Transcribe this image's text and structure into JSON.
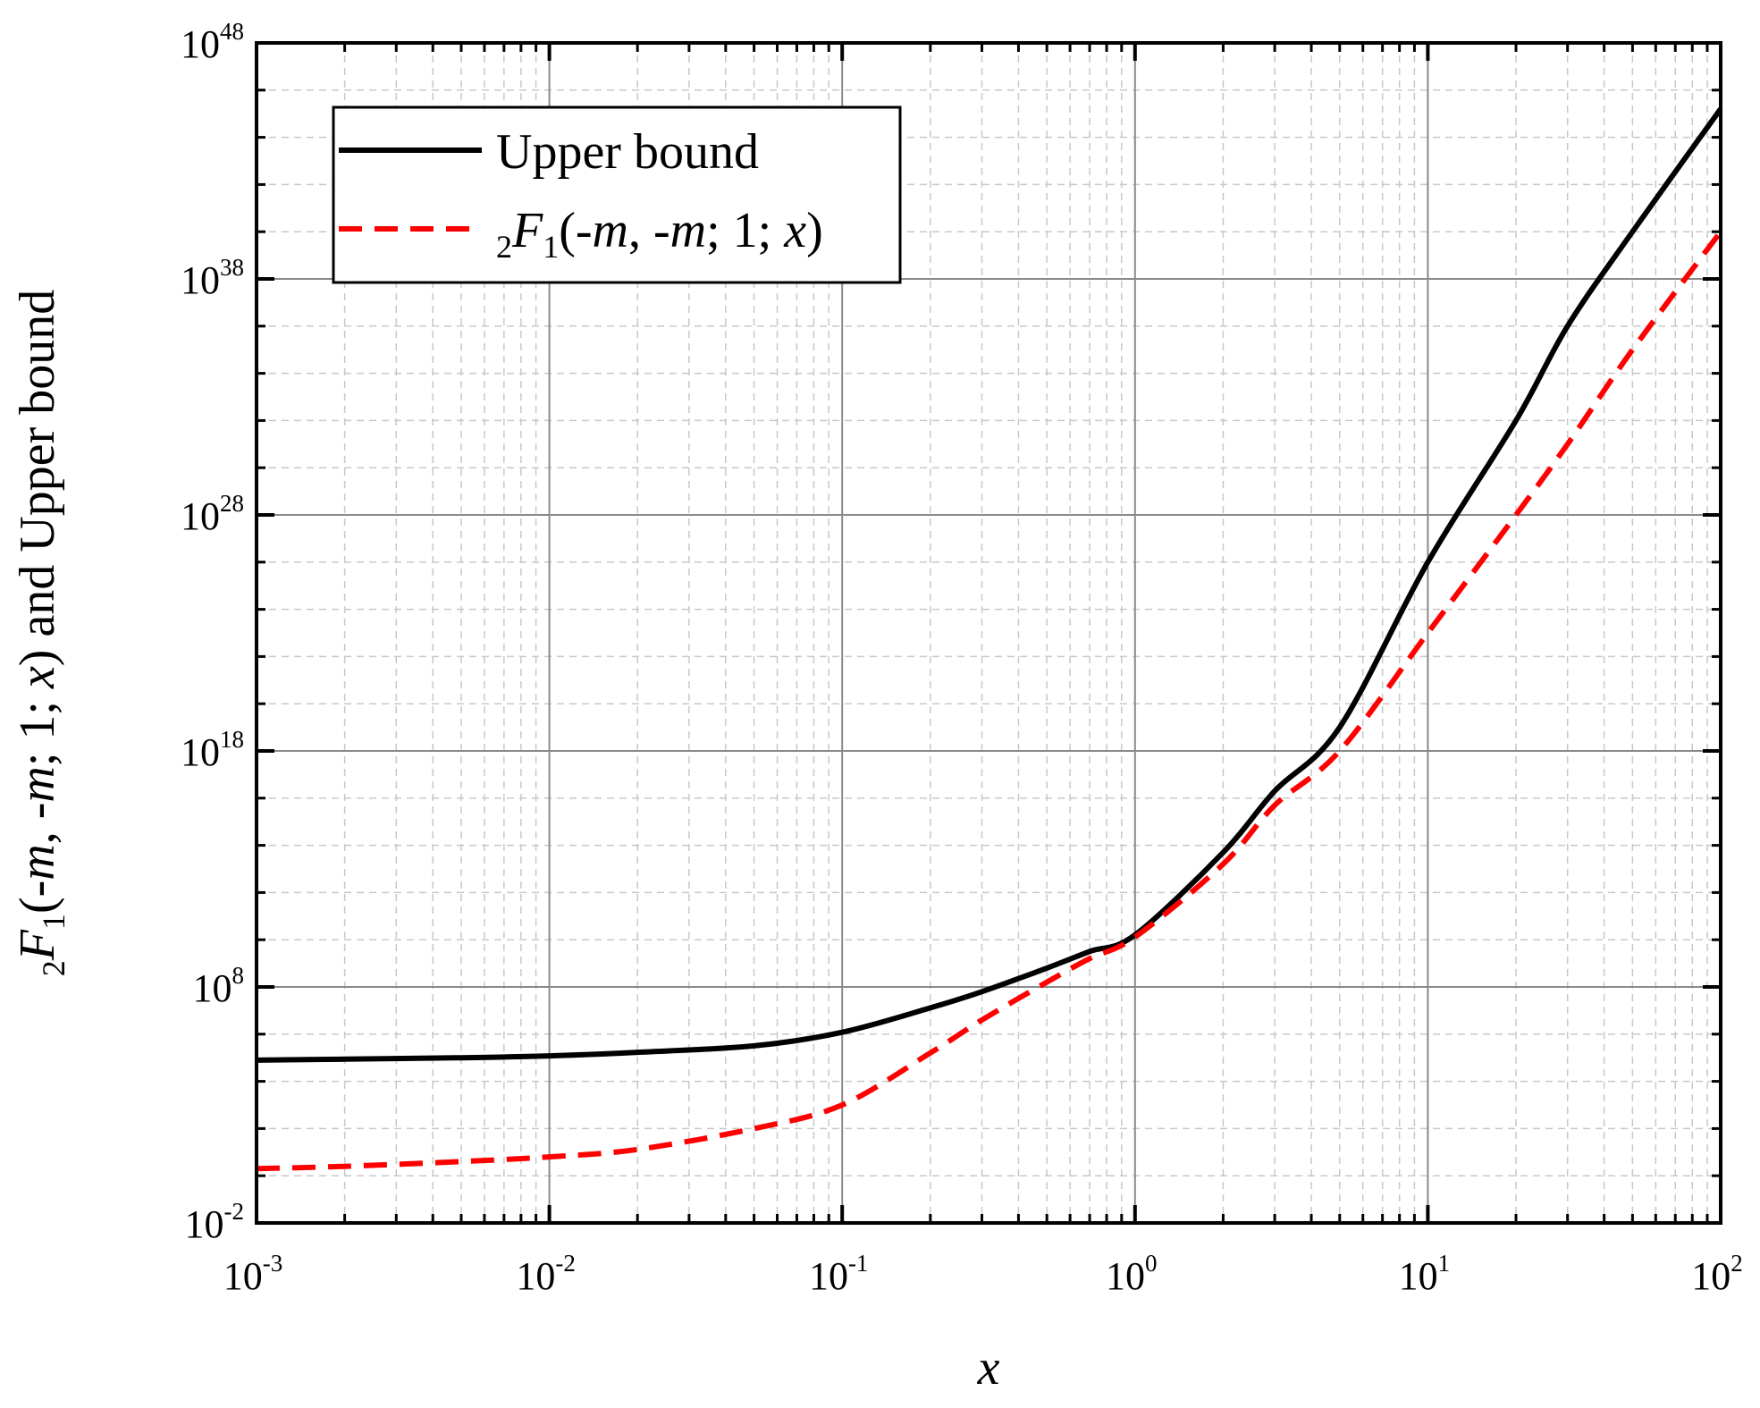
{
  "chart_data": {
    "type": "line",
    "xscale": "log",
    "yscale": "log",
    "xlim": [
      0.001,
      100
    ],
    "ylim": [
      0.01,
      1e+48
    ],
    "grid": true,
    "legend_position": "top-left",
    "xlabel": "x",
    "ylabel": {
      "pre": "F",
      "pre_sub_left": "2",
      "pre_sub_right": "1",
      "args_lead": "(-",
      "m1": "m",
      "comma": ", -",
      "m2": "m",
      "semi": "; 1; ",
      "x": "x",
      "tail": ") and Upper bound"
    },
    "x_ticks": [
      {
        "base": "10",
        "exp": "-3"
      },
      {
        "base": "10",
        "exp": "-2"
      },
      {
        "base": "10",
        "exp": "-1"
      },
      {
        "base": "10",
        "exp": "0"
      },
      {
        "base": "10",
        "exp": "1"
      },
      {
        "base": "10",
        "exp": "2"
      }
    ],
    "y_ticks": [
      {
        "base": "10",
        "exp": "-2"
      },
      {
        "base": "10",
        "exp": "8"
      },
      {
        "base": "10",
        "exp": "18"
      },
      {
        "base": "10",
        "exp": "28"
      },
      {
        "base": "10",
        "exp": "38"
      },
      {
        "base": "10",
        "exp": "48"
      }
    ],
    "series": [
      {
        "name": "Upper bound",
        "color": "#000000",
        "style": "solid",
        "x": [
          0.001,
          0.002,
          0.005,
          0.01,
          0.02,
          0.05,
          0.1,
          0.2,
          0.3,
          0.5,
          0.7,
          1,
          2,
          3,
          5,
          10,
          20,
          30,
          50,
          100
        ],
        "y": [
          79000.0,
          87000.0,
          100000.0,
          120000.0,
          170000.0,
          320000.0,
          1200000.0,
          13000000.0,
          63000000.0,
          630000000.0,
          3200000000.0,
          16000000000.0,
          50000000000000.0,
          2e+16,
          1e+19,
          1e+26,
          1e+32,
          1e+36,
          1e+40,
          1.6e+45
        ]
      },
      {
        "name": "2F1(-m, -m; 1; x)",
        "legend_label": {
          "sub_left": "2",
          "F": "F",
          "sub_right": "1",
          "args_lead": "(-",
          "m1": "m",
          "comma": ", -",
          "m2": "m",
          "semi": "; 1; ",
          "x": "x",
          "close": ")"
        },
        "color": "#ff0000",
        "style": "dashed",
        "x": [
          0.001,
          0.002,
          0.005,
          0.01,
          0.02,
          0.05,
          0.1,
          0.2,
          0.3,
          0.5,
          0.7,
          1,
          2,
          3,
          5,
          10,
          20,
          30,
          50,
          100
        ],
        "y": [
          2.0,
          2.5,
          4.0,
          6.3,
          13.0,
          100.0,
          1000.0,
          160000.0,
          4000000.0,
          160000000.0,
          1600000000.0,
          13000000000.0,
          16000000000000.0,
          5000000000000000.0,
          1e+18,
          1e+23,
          1e+28,
          1e+31,
          1e+35,
          1e+40
        ]
      }
    ]
  }
}
